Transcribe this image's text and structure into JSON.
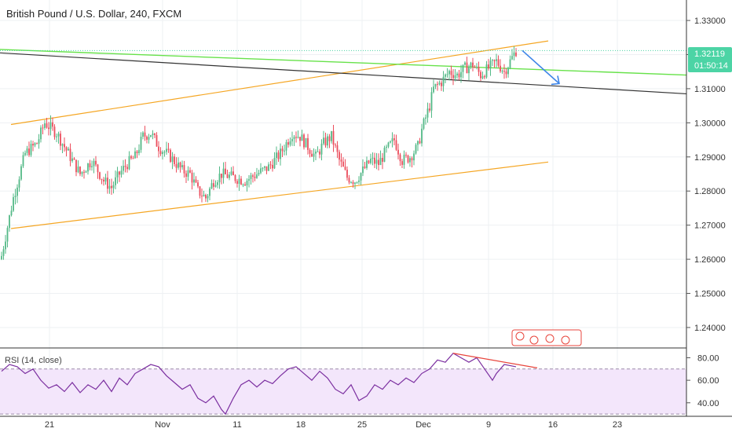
{
  "header": {
    "title": "British Pound / U.S. Dollar, 240, FXCM"
  },
  "colors": {
    "up": "#53b987",
    "down": "#eb4d5c",
    "grid": "#eef0f3",
    "channel": "#f5a623",
    "trend": "#333333",
    "green_line": "#67e24a",
    "arrow": "#3d85e8",
    "rsi": "#7b2fa0",
    "rsi_band": "#f3e6fb",
    "divergence": "#e8453c",
    "price_tag": "#4cd4a5"
  },
  "price_axis": {
    "ticks": [
      "1.33000",
      "1.32000",
      "1.31000",
      "1.30000",
      "1.29000",
      "1.28000",
      "1.27000",
      "1.26000",
      "1.25000",
      "1.24000"
    ]
  },
  "last_price": {
    "value": "1.32119",
    "countdown": "01:50:14"
  },
  "time_axis": {
    "labels": [
      "21",
      "Nov",
      "11",
      "18",
      "25",
      "Dec",
      "9",
      "16",
      "23"
    ]
  },
  "rsi_panel": {
    "label": "RSI (14, close)",
    "ticks": [
      "80.00",
      "60.00",
      "40.00"
    ]
  },
  "chart_data": {
    "type": "candlestick",
    "title": "British Pound / U.S. Dollar, 240, FXCM",
    "symbol": "GBP/USD",
    "timeframe": "240",
    "source": "FXCM",
    "ylim": [
      1.234,
      1.336
    ],
    "x_labels": [
      "21",
      "Nov",
      "11",
      "18",
      "25",
      "Dec",
      "9",
      "16",
      "23"
    ],
    "last_price": 1.32119,
    "close_path": [
      [
        0,
        1.261
      ],
      [
        6,
        1.278
      ],
      [
        12,
        1.291
      ],
      [
        18,
        1.294
      ],
      [
        22,
        1.3
      ],
      [
        28,
        1.297
      ],
      [
        34,
        1.291
      ],
      [
        40,
        1.285
      ],
      [
        46,
        1.289
      ],
      [
        52,
        1.283
      ],
      [
        56,
        1.281
      ],
      [
        60,
        1.285
      ],
      [
        64,
        1.288
      ],
      [
        68,
        1.29
      ],
      [
        72,
        1.296
      ],
      [
        76,
        1.297
      ],
      [
        80,
        1.293
      ],
      [
        86,
        1.29
      ],
      [
        92,
        1.286
      ],
      [
        96,
        1.285
      ],
      [
        100,
        1.28
      ],
      [
        104,
        1.278
      ],
      [
        108,
        1.283
      ],
      [
        112,
        1.285
      ],
      [
        118,
        1.284
      ],
      [
        124,
        1.283
      ],
      [
        130,
        1.285
      ],
      [
        136,
        1.287
      ],
      [
        142,
        1.291
      ],
      [
        148,
        1.297
      ],
      [
        152,
        1.296
      ],
      [
        156,
        1.293
      ],
      [
        160,
        1.29
      ],
      [
        164,
        1.294
      ],
      [
        168,
        1.296
      ],
      [
        172,
        1.289
      ],
      [
        176,
        1.284
      ],
      [
        180,
        1.283
      ],
      [
        184,
        1.286
      ],
      [
        188,
        1.289
      ],
      [
        192,
        1.288
      ],
      [
        196,
        1.292
      ],
      [
        200,
        1.295
      ],
      [
        204,
        1.289
      ],
      [
        208,
        1.29
      ],
      [
        212,
        1.293
      ],
      [
        214,
        1.298
      ],
      [
        218,
        1.305
      ],
      [
        220,
        1.31
      ],
      [
        224,
        1.312
      ],
      [
        228,
        1.315
      ],
      [
        232,
        1.314
      ],
      [
        236,
        1.316
      ],
      [
        240,
        1.317
      ],
      [
        244,
        1.314
      ],
      [
        248,
        1.316
      ],
      [
        252,
        1.318
      ],
      [
        256,
        1.315
      ],
      [
        258,
        1.317
      ],
      [
        262,
        1.3212
      ]
    ],
    "drawings": {
      "upper_channel": [
        [
          1.2995,
          1.324
        ]
      ],
      "lower_channel": [
        [
          1.269,
          1.2885
        ]
      ],
      "descending_trendline": [
        [
          1.3205,
          1.3085
        ]
      ],
      "green_line": [
        [
          1.3215,
          1.314
        ]
      ]
    },
    "rsi": {
      "label": "RSI (14, close)",
      "ylim": [
        28,
        88
      ],
      "levels": [
        70,
        30
      ],
      "points": [
        [
          0,
          68
        ],
        [
          4,
          74
        ],
        [
          8,
          72
        ],
        [
          12,
          66
        ],
        [
          16,
          70
        ],
        [
          20,
          60
        ],
        [
          24,
          53
        ],
        [
          28,
          56
        ],
        [
          32,
          50
        ],
        [
          36,
          58
        ],
        [
          40,
          49
        ],
        [
          44,
          56
        ],
        [
          48,
          52
        ],
        [
          52,
          60
        ],
        [
          56,
          50
        ],
        [
          60,
          62
        ],
        [
          64,
          56
        ],
        [
          68,
          66
        ],
        [
          72,
          70
        ],
        [
          76,
          74
        ],
        [
          80,
          72
        ],
        [
          84,
          64
        ],
        [
          88,
          58
        ],
        [
          92,
          52
        ],
        [
          96,
          56
        ],
        [
          100,
          44
        ],
        [
          104,
          40
        ],
        [
          108,
          46
        ],
        [
          112,
          34
        ],
        [
          114,
          30
        ],
        [
          118,
          44
        ],
        [
          122,
          56
        ],
        [
          126,
          60
        ],
        [
          130,
          54
        ],
        [
          134,
          60
        ],
        [
          138,
          57
        ],
        [
          142,
          64
        ],
        [
          146,
          70
        ],
        [
          150,
          72
        ],
        [
          154,
          66
        ],
        [
          158,
          60
        ],
        [
          162,
          68
        ],
        [
          166,
          62
        ],
        [
          170,
          52
        ],
        [
          174,
          48
        ],
        [
          178,
          56
        ],
        [
          182,
          42
        ],
        [
          186,
          46
        ],
        [
          190,
          56
        ],
        [
          194,
          52
        ],
        [
          198,
          60
        ],
        [
          202,
          56
        ],
        [
          206,
          62
        ],
        [
          210,
          58
        ],
        [
          214,
          66
        ],
        [
          218,
          70
        ],
        [
          222,
          78
        ],
        [
          226,
          76
        ],
        [
          230,
          84
        ],
        [
          234,
          80
        ],
        [
          238,
          76
        ],
        [
          242,
          80
        ],
        [
          246,
          70
        ],
        [
          250,
          60
        ],
        [
          252,
          66
        ],
        [
          256,
          74
        ],
        [
          262,
          72
        ]
      ],
      "divergence_line": [
        [
          84,
          71
        ]
      ]
    }
  }
}
